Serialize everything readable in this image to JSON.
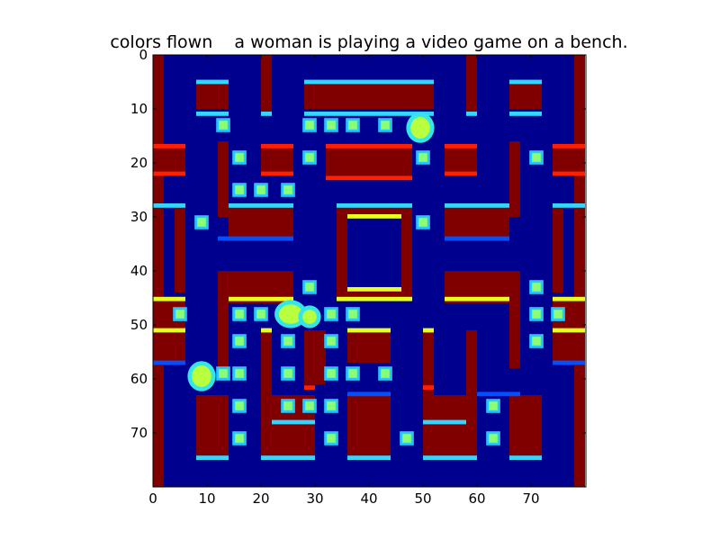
{
  "figure": {
    "title": "colors flown    a woman is playing a video game on a bench.",
    "colormap": "jet",
    "grid": false
  },
  "axes": {
    "x_ticks": [
      0,
      10,
      20,
      30,
      40,
      50,
      60,
      70
    ],
    "y_ticks": [
      0,
      10,
      20,
      30,
      40,
      50,
      60,
      70
    ],
    "x_range": [
      0,
      80
    ],
    "y_range": [
      80,
      0
    ]
  },
  "game_frame": {
    "description_items": [
      "maze",
      "pellets",
      "player",
      "ghosts"
    ],
    "colors": {
      "background": "#00008f",
      "wall": "#800000",
      "pellet": "#8bff74",
      "edge_cyan": "#33d6ff",
      "edge_yellow": "#e8ff1e",
      "edge_blue": "#0050ff",
      "sprite": "#b8ff40"
    }
  }
}
